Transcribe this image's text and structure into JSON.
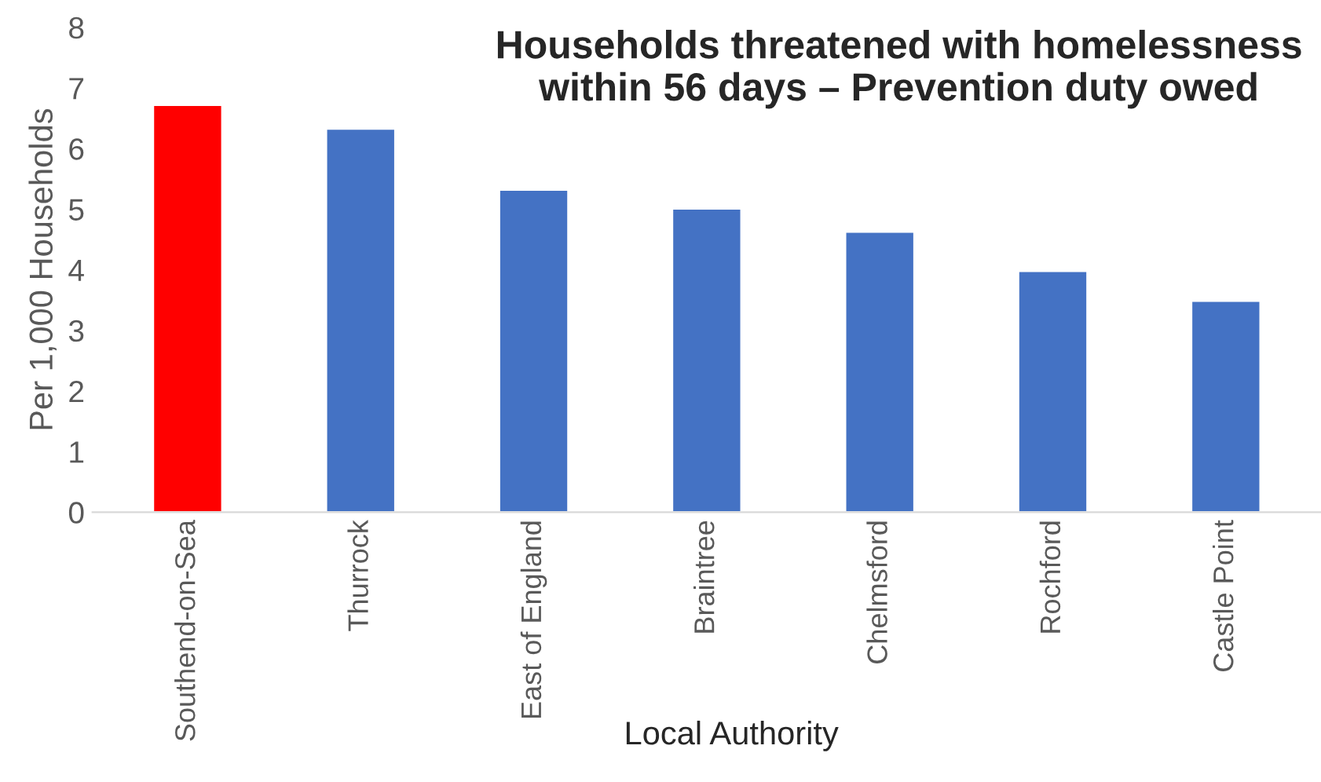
{
  "chart_data": {
    "type": "bar",
    "title": "Households threatened with homelessness\nwithin 56 days – Prevention duty owed",
    "xlabel": "Local Authority",
    "ylabel": "Per 1,000 Households",
    "categories": [
      "Southend-on-Sea",
      "Thurrock",
      "East of England",
      "Braintree",
      "Chelmsford",
      "Rochford",
      "Castle Point"
    ],
    "values": [
      6.72,
      6.33,
      5.32,
      5.01,
      4.63,
      3.98,
      3.49
    ],
    "colors": [
      "#ff0000",
      "#4472c4",
      "#4472c4",
      "#4472c4",
      "#4472c4",
      "#4472c4",
      "#4472c4"
    ],
    "ylim": [
      0,
      8
    ],
    "yticks": [
      0,
      1,
      2,
      3,
      4,
      5,
      6,
      7,
      8
    ],
    "grid": false
  }
}
